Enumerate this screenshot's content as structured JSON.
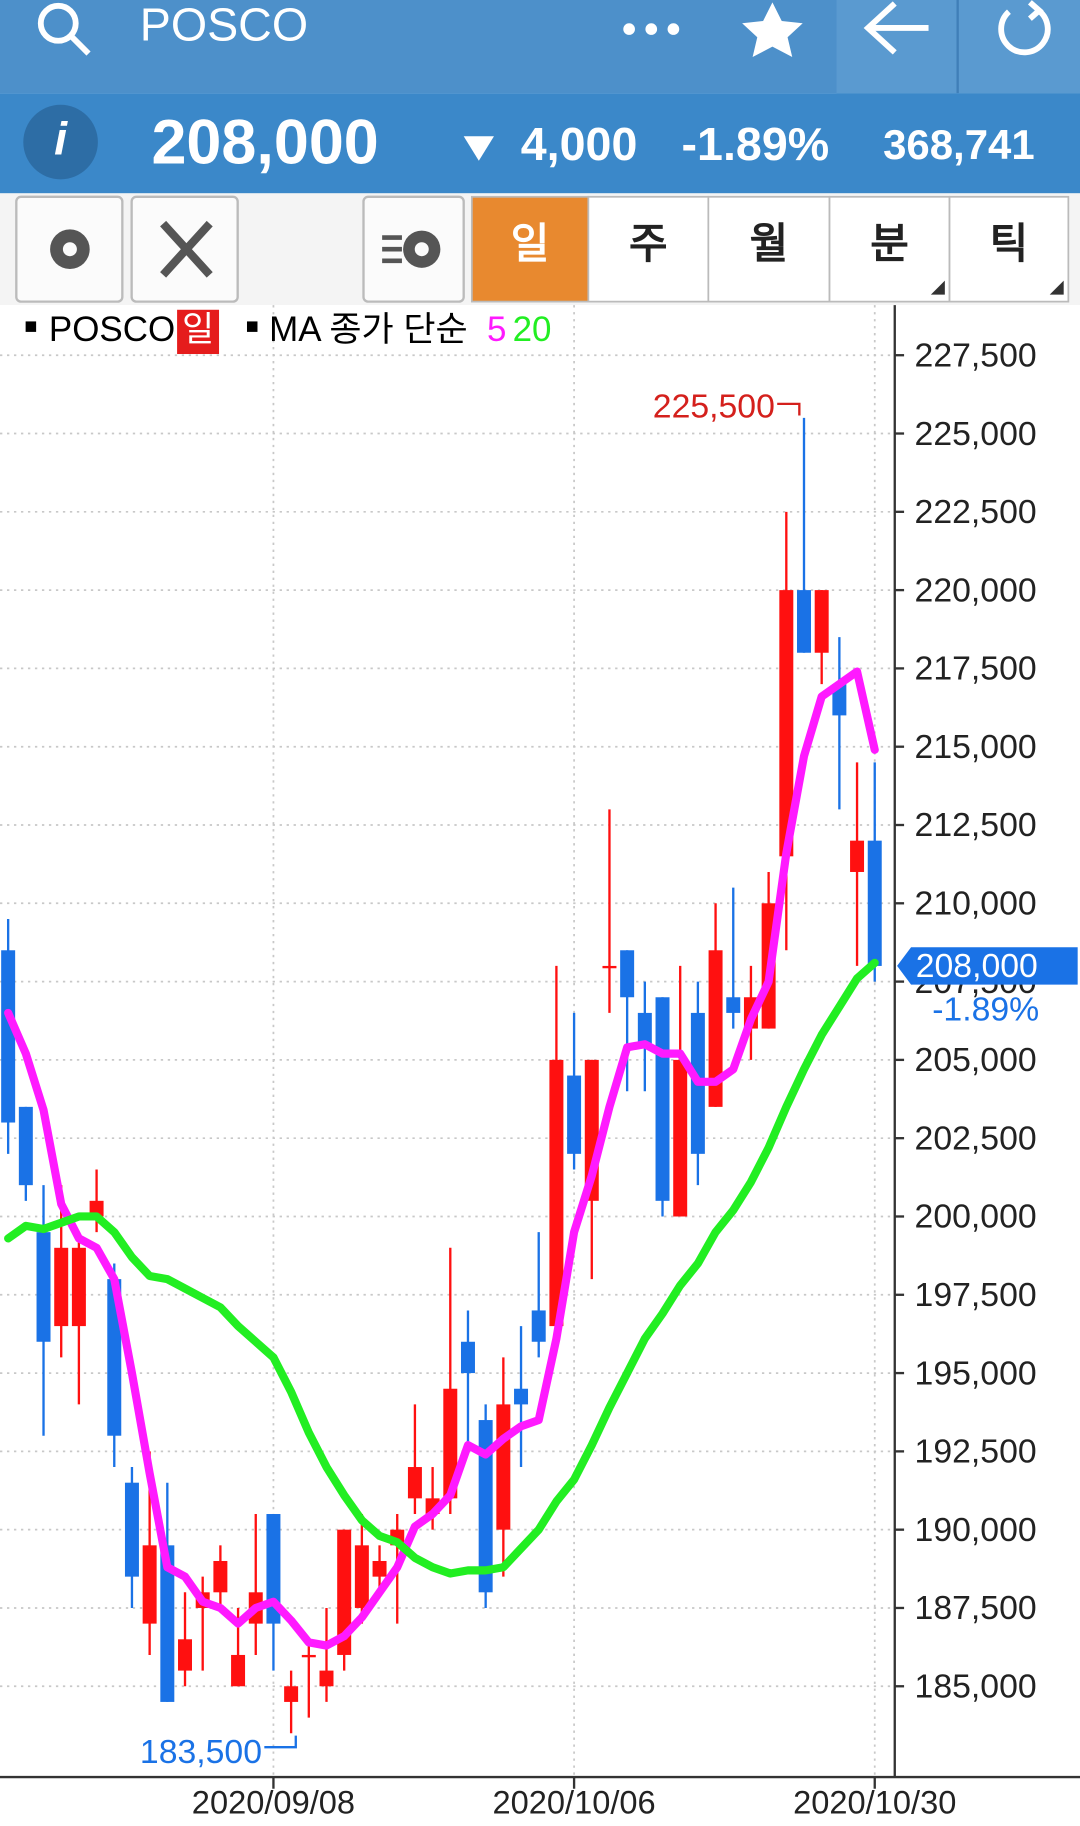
{
  "header": {
    "title": "POSCO"
  },
  "quote": {
    "price": "208,000",
    "change": "4,000",
    "change_pct": "-1.89%",
    "volume": "368,741"
  },
  "tabs": [
    "일",
    "주",
    "월",
    "분",
    "틱"
  ],
  "chart_data": {
    "type": "candlestick",
    "period": "일",
    "ma_label": "MA 종가 단순",
    "categories": [
      null,
      null,
      null,
      null,
      null,
      null,
      null,
      null,
      null,
      null,
      null,
      null,
      null,
      null,
      null,
      "2020/09/08",
      null,
      null,
      null,
      null,
      null,
      null,
      null,
      null,
      null,
      null,
      null,
      null,
      null,
      null,
      null,
      null,
      "2020/10/06",
      null,
      null,
      null,
      null,
      null,
      null,
      null,
      null,
      null,
      null,
      null,
      null,
      null,
      null,
      null,
      null,
      "2020/10/30"
    ],
    "series": [
      {
        "name": "POSCO",
        "up_color": "#ff1010",
        "down_color": "#1a72e6",
        "open": [
          208500,
          203500,
          199500,
          196500,
          196500,
          200000,
          198000,
          191500,
          187000,
          189500,
          185500,
          187500,
          188000,
          185000,
          187000,
          190500,
          184500,
          186000,
          185000,
          186000,
          187500,
          188500,
          189500,
          191000,
          190500,
          191000,
          196000,
          193500,
          190000,
          194500,
          197000,
          196500,
          204500,
          200500,
          208000,
          208500,
          206500,
          207000,
          200000,
          206500,
          203500,
          207000,
          206000,
          206000,
          211500,
          220000,
          218000,
          217000,
          211000,
          212000
        ],
        "high": [
          209500,
          203500,
          201000,
          201000,
          199500,
          201500,
          198500,
          192000,
          192500,
          191500,
          188000,
          188500,
          189500,
          187500,
          190500,
          190500,
          185500,
          186500,
          187500,
          190000,
          190500,
          189500,
          190500,
          194000,
          192000,
          199000,
          197000,
          194000,
          195500,
          196500,
          199500,
          208000,
          206500,
          205000,
          213000,
          208500,
          207500,
          207000,
          208000,
          207500,
          210000,
          210500,
          208000,
          211000,
          222500,
          225500,
          220000,
          218500,
          214500,
          214500
        ],
        "low": [
          202000,
          200500,
          193000,
          195500,
          194000,
          199500,
          192000,
          187500,
          186000,
          184500,
          185000,
          185500,
          187500,
          185000,
          186000,
          185500,
          183500,
          184000,
          184500,
          185500,
          187000,
          188000,
          187000,
          190500,
          190000,
          190500,
          192500,
          187500,
          188500,
          192000,
          195500,
          196500,
          201500,
          198000,
          206500,
          204000,
          204000,
          200000,
          200000,
          201000,
          203500,
          206000,
          205000,
          206000,
          208500,
          218000,
          217000,
          213000,
          208000,
          207500
        ],
        "close": [
          203000,
          201000,
          196000,
          199000,
          199000,
          200500,
          193000,
          188500,
          189500,
          184500,
          186500,
          188000,
          189000,
          186000,
          188000,
          187000,
          185000,
          186000,
          185500,
          190000,
          189500,
          189000,
          190000,
          192000,
          191000,
          194500,
          195000,
          188000,
          194000,
          194000,
          196000,
          205000,
          202000,
          205000,
          208000,
          207000,
          205500,
          200500,
          205000,
          202000,
          208500,
          206500,
          207000,
          210000,
          220000,
          218000,
          220000,
          216000,
          212000,
          208000
        ]
      },
      {
        "name": "5",
        "color": "#ff1aff",
        "values": [
          206500,
          205200,
          203400,
          200400,
          199300,
          199000,
          198000,
          195000,
          191800,
          188800,
          188500,
          187700,
          187500,
          187000,
          187500,
          187700,
          187100,
          186400,
          186300,
          186600,
          187200,
          188000,
          188800,
          190100,
          190500,
          191100,
          192700,
          192400,
          192900,
          193300,
          193500,
          196100,
          199500,
          201300,
          203500,
          205400,
          205500,
          205200,
          205200,
          204300,
          204300,
          204700,
          206300,
          207500,
          211600,
          214700,
          216600,
          217000,
          217400,
          214900
        ]
      },
      {
        "name": "20",
        "color": "#22ee22",
        "values": [
          199300,
          199700,
          199600,
          199800,
          200000,
          200000,
          199500,
          198700,
          198100,
          198000,
          197700,
          197400,
          197100,
          196500,
          196000,
          195500,
          194400,
          193100,
          192000,
          191100,
          190300,
          189800,
          189600,
          189100,
          188800,
          188600,
          188700,
          188700,
          188800,
          189400,
          190000,
          190900,
          191600,
          192700,
          193900,
          195000,
          196100,
          196900,
          197800,
          198500,
          199500,
          200200,
          201100,
          202200,
          203500,
          204700,
          205800,
          206700,
          207600,
          208100
        ]
      }
    ],
    "ylim": [
      182100,
      229100
    ],
    "yticks": [
      {
        "value": 185000,
        "label": "185,000"
      },
      {
        "value": 187500,
        "label": "187,500"
      },
      {
        "value": 190000,
        "label": "190,000"
      },
      {
        "value": 192500,
        "label": "192,500"
      },
      {
        "value": 195000,
        "label": "195,000"
      },
      {
        "value": 197500,
        "label": "197,500"
      },
      {
        "value": 200000,
        "label": "200,000"
      },
      {
        "value": 202500,
        "label": "202,500"
      },
      {
        "value": 205000,
        "label": "205,000"
      },
      {
        "value": 207500,
        "label": "207,500"
      },
      {
        "value": 210000,
        "label": "210,000"
      },
      {
        "value": 212500,
        "label": "212,500"
      },
      {
        "value": 215000,
        "label": "215,000"
      },
      {
        "value": 217500,
        "label": "217,500"
      },
      {
        "value": 220000,
        "label": "220,000"
      },
      {
        "value": 222500,
        "label": "222,500"
      },
      {
        "value": 225000,
        "label": "225,000"
      },
      {
        "value": 227500,
        "label": "227,500"
      }
    ],
    "grid": true,
    "annotations": {
      "max_label": "225,500",
      "min_label": "183,500",
      "last_price": "208,000",
      "last_change": "-1.89%"
    }
  }
}
